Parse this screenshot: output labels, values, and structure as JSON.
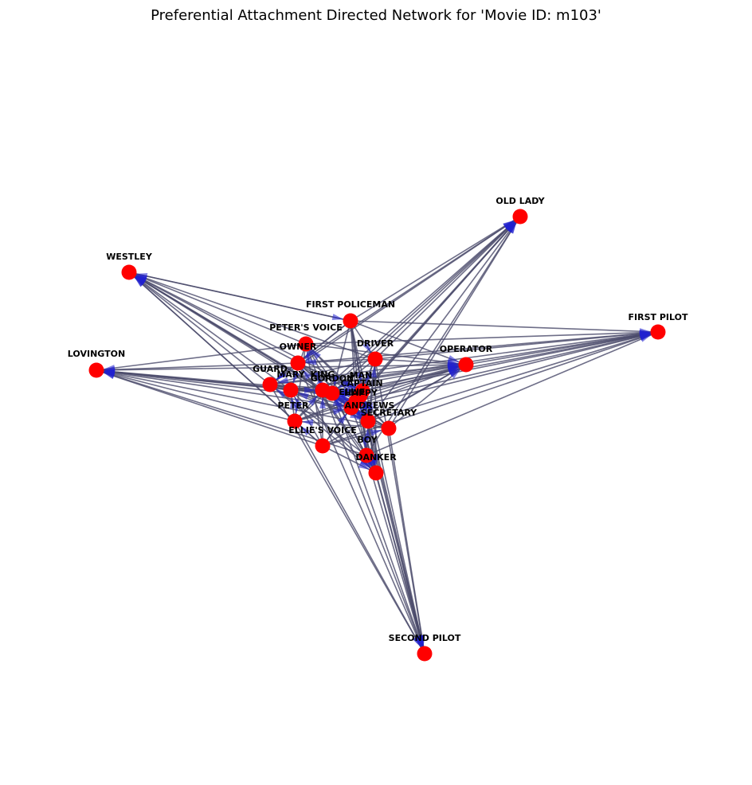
{
  "title": "Preferential Attachment Directed Network for 'Movie ID: m103'",
  "colors": {
    "node": "#ff0000",
    "edge": "#4a4a6a",
    "arrow": "#2020d0"
  },
  "nodes": [
    {
      "id": "OLD LADY",
      "label": "OLD LADY"
    },
    {
      "id": "WESTLEY",
      "label": "WESTLEY"
    },
    {
      "id": "FIRST POLICEMAN",
      "label": "FIRST POLICEMAN"
    },
    {
      "id": "FIRST PILOT",
      "label": "FIRST PILOT"
    },
    {
      "id": "PETER'S VOICE",
      "label": "PETER'S VOICE"
    },
    {
      "id": "OWNER",
      "label": "OWNER"
    },
    {
      "id": "DRIVER",
      "label": "DRIVER"
    },
    {
      "id": "OPERATOR",
      "label": "OPERATOR"
    },
    {
      "id": "LOVINGTON",
      "label": "LOVINGTON"
    },
    {
      "id": "GUARD",
      "label": "GUARD"
    },
    {
      "id": "MARY",
      "label": "MARY"
    },
    {
      "id": "KING",
      "label": "KING"
    },
    {
      "id": "GORDON",
      "label": "GORDON"
    },
    {
      "id": "MAN",
      "label": "MAN"
    },
    {
      "id": "CAPTAIN",
      "label": "CAPTAIN"
    },
    {
      "id": "ELLIE",
      "label": "ELLIE"
    },
    {
      "id": "HAPPY",
      "label": "HAPPY"
    },
    {
      "id": "PETER",
      "label": "PETER"
    },
    {
      "id": "ANDREWS",
      "label": "ANDREWS"
    },
    {
      "id": "SECRETARY",
      "label": "SECRETARY"
    },
    {
      "id": "ELLIE'S VOICE",
      "label": "ELLIE'S VOICE"
    },
    {
      "id": "BOY",
      "label": "BOY"
    },
    {
      "id": "DANKER",
      "label": "DANKER"
    },
    {
      "id": "SECOND PILOT",
      "label": "SECOND PILOT"
    }
  ]
}
